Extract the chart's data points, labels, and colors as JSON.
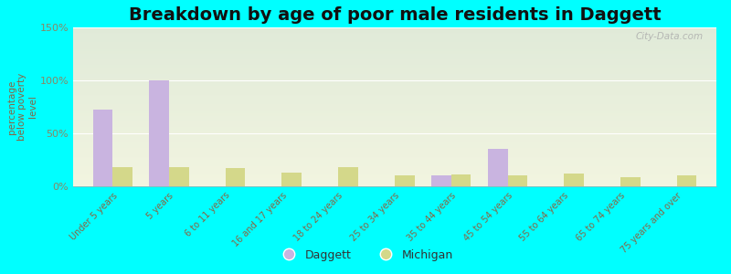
{
  "title": "Breakdown by age of poor male residents in Daggett",
  "ylabel": "percentage\nbelow poverty\nlevel",
  "categories": [
    "Under 5 years",
    "5 years",
    "6 to 11 years",
    "16 and 17 years",
    "18 to 24 years",
    "25 to 34 years",
    "35 to 44 years",
    "45 to 54 years",
    "55 to 64 years",
    "65 to 74 years",
    "75 years and over"
  ],
  "daggett_values": [
    72,
    100,
    0,
    0,
    0,
    0,
    10,
    35,
    0,
    0,
    0
  ],
  "michigan_values": [
    18,
    18,
    17,
    13,
    18,
    10,
    11,
    10,
    12,
    9,
    10
  ],
  "daggett_color": "#c9b4e0",
  "michigan_color": "#d4d88a",
  "ylim": [
    0,
    150
  ],
  "yticks": [
    0,
    50,
    100,
    150
  ],
  "ytick_labels": [
    "0%",
    "50%",
    "100%",
    "150%"
  ],
  "background_color": "#00ffff",
  "bar_width": 0.35,
  "title_fontsize": 14,
  "watermark": "City-Data.com",
  "tick_color": "#888866",
  "label_color": "#886644"
}
